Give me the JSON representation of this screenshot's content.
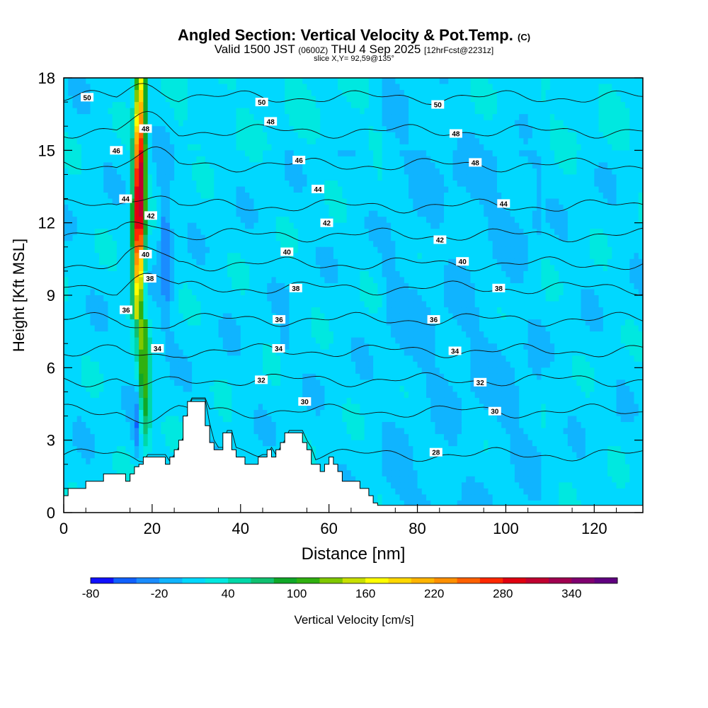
{
  "header": {
    "title": "Angled Section: Vertical Velocity & Pot.Temp.",
    "title_suffix": "(C)",
    "valid_prefix": "Valid 1500 JST",
    "valid_zulu": "(0600Z)",
    "valid_date": "THU 4 Sep 2025",
    "forecast": "[12hrFcst@2231z]",
    "slice": "slice X,Y= 92,59@135°"
  },
  "chart_data": {
    "type": "heatmap",
    "xlabel": "Distance [nm]",
    "ylabel": "Height [Kft MSL]",
    "xlim": [
      0,
      131
    ],
    "ylim": [
      0,
      18
    ],
    "x_ticks": [
      0,
      20,
      40,
      60,
      80,
      100,
      120
    ],
    "y_ticks": [
      0,
      3,
      6,
      9,
      12,
      15,
      18
    ],
    "colorbar": {
      "label": "Vertical Velocity [cm/s]",
      "min": -80,
      "max": 370,
      "step": 20,
      "tick_labels": [
        "-80",
        "-20",
        "40",
        "100",
        "160",
        "220",
        "280",
        "340"
      ],
      "colors": [
        "#1010ff",
        "#1060ff",
        "#1a8cff",
        "#10b4ff",
        "#00d8ff",
        "#00e8e0",
        "#00d8a8",
        "#10c070",
        "#10a828",
        "#30b010",
        "#80c800",
        "#c8e000",
        "#ffff00",
        "#ffd800",
        "#ffb400",
        "#ff9000",
        "#ff6000",
        "#ff2800",
        "#e00010",
        "#c00030",
        "#a00050",
        "#800070",
        "#600080"
      ]
    },
    "background_velocity": 10,
    "updraft": {
      "x": 17,
      "peak": 340,
      "top": 18,
      "bottom": 5
    },
    "downdraft": {
      "x": 23,
      "min": -40,
      "top": 14,
      "bottom": 8
    },
    "terrain": [
      [
        0,
        0.7
      ],
      [
        1,
        1.0
      ],
      [
        3,
        1.0
      ],
      [
        5,
        1.3
      ],
      [
        7,
        1.3
      ],
      [
        9,
        1.6
      ],
      [
        13,
        1.6
      ],
      [
        14,
        1.3
      ],
      [
        15,
        1.6
      ],
      [
        16,
        1.9
      ],
      [
        17,
        2.0
      ],
      [
        18,
        2.3
      ],
      [
        22,
        2.3
      ],
      [
        23,
        2.0
      ],
      [
        24,
        2.3
      ],
      [
        25,
        2.6
      ],
      [
        26,
        3.0
      ],
      [
        27,
        4.0
      ],
      [
        28,
        4.6
      ],
      [
        31,
        4.6
      ],
      [
        32,
        3.6
      ],
      [
        33,
        2.9
      ],
      [
        34,
        2.6
      ],
      [
        36,
        3.3
      ],
      [
        37,
        3.3
      ],
      [
        38,
        2.6
      ],
      [
        39,
        2.3
      ],
      [
        40,
        2.3
      ],
      [
        41,
        2.0
      ],
      [
        43,
        2.0
      ],
      [
        44,
        2.3
      ],
      [
        46,
        2.6
      ],
      [
        47,
        2.3
      ],
      [
        48,
        2.6
      ],
      [
        49,
        2.9
      ],
      [
        50,
        3.3
      ],
      [
        52,
        3.3
      ],
      [
        54,
        2.9
      ],
      [
        55,
        2.6
      ],
      [
        56,
        2.0
      ],
      [
        58,
        1.7
      ],
      [
        59,
        2.0
      ],
      [
        60,
        2.3
      ],
      [
        61,
        2.0
      ],
      [
        62,
        1.7
      ],
      [
        63,
        1.3
      ],
      [
        66,
        1.3
      ],
      [
        67,
        1.0
      ],
      [
        69,
        0.7
      ],
      [
        70,
        0.4
      ],
      [
        71,
        0.3
      ],
      [
        131,
        0.3
      ]
    ],
    "theta_contours": [
      {
        "label": "28",
        "height": 2.4
      },
      {
        "label": "30",
        "height": 4.2
      },
      {
        "label": "32",
        "height": 5.5
      },
      {
        "label": "34",
        "height": 6.7
      },
      {
        "label": "36",
        "height": 8.0
      },
      {
        "label": "38",
        "height": 9.3
      },
      {
        "label": "40",
        "height": 10.3
      },
      {
        "label": "42",
        "height": 11.5
      },
      {
        "label": "44",
        "height": 12.7
      },
      {
        "label": "46",
        "height": 14.4
      },
      {
        "label": "48",
        "height": 15.8
      },
      {
        "label": "50",
        "height": 17.2
      }
    ],
    "contour_labels": [
      {
        "text": "50",
        "x": 5.3,
        "y": 17.2
      },
      {
        "text": "50",
        "x": 44.8,
        "y": 17.0
      },
      {
        "text": "50",
        "x": 84.6,
        "y": 16.9
      },
      {
        "text": "48",
        "x": 18.5,
        "y": 15.9
      },
      {
        "text": "48",
        "x": 46.8,
        "y": 16.2
      },
      {
        "text": "48",
        "x": 88.7,
        "y": 15.7
      },
      {
        "text": "48",
        "x": 93.1,
        "y": 14.5
      },
      {
        "text": "46",
        "x": 11.9,
        "y": 15.0
      },
      {
        "text": "46",
        "x": 53.2,
        "y": 14.6
      },
      {
        "text": "44",
        "x": 14.0,
        "y": 13.0
      },
      {
        "text": "44",
        "x": 57.5,
        "y": 13.4
      },
      {
        "text": "44",
        "x": 99.5,
        "y": 12.8
      },
      {
        "text": "42",
        "x": 19.7,
        "y": 12.3
      },
      {
        "text": "42",
        "x": 59.5,
        "y": 12.0
      },
      {
        "text": "42",
        "x": 85.1,
        "y": 11.3
      },
      {
        "text": "40",
        "x": 18.5,
        "y": 10.7
      },
      {
        "text": "40",
        "x": 50.5,
        "y": 10.8
      },
      {
        "text": "40",
        "x": 90.2,
        "y": 10.4
      },
      {
        "text": "38",
        "x": 19.5,
        "y": 9.7
      },
      {
        "text": "38",
        "x": 52.5,
        "y": 9.3
      },
      {
        "text": "38",
        "x": 98.4,
        "y": 9.3
      },
      {
        "text": "36",
        "x": 14.1,
        "y": 8.4
      },
      {
        "text": "36",
        "x": 48.7,
        "y": 8.0
      },
      {
        "text": "36",
        "x": 83.7,
        "y": 8.0
      },
      {
        "text": "34",
        "x": 21.2,
        "y": 6.8
      },
      {
        "text": "34",
        "x": 48.6,
        "y": 6.8
      },
      {
        "text": "34",
        "x": 88.5,
        "y": 6.7
      },
      {
        "text": "32",
        "x": 44.7,
        "y": 5.5
      },
      {
        "text": "32",
        "x": 94.2,
        "y": 5.4
      },
      {
        "text": "30",
        "x": 54.5,
        "y": 4.6
      },
      {
        "text": "30",
        "x": 97.5,
        "y": 4.2
      },
      {
        "text": "28",
        "x": 84.2,
        "y": 2.5
      }
    ]
  }
}
